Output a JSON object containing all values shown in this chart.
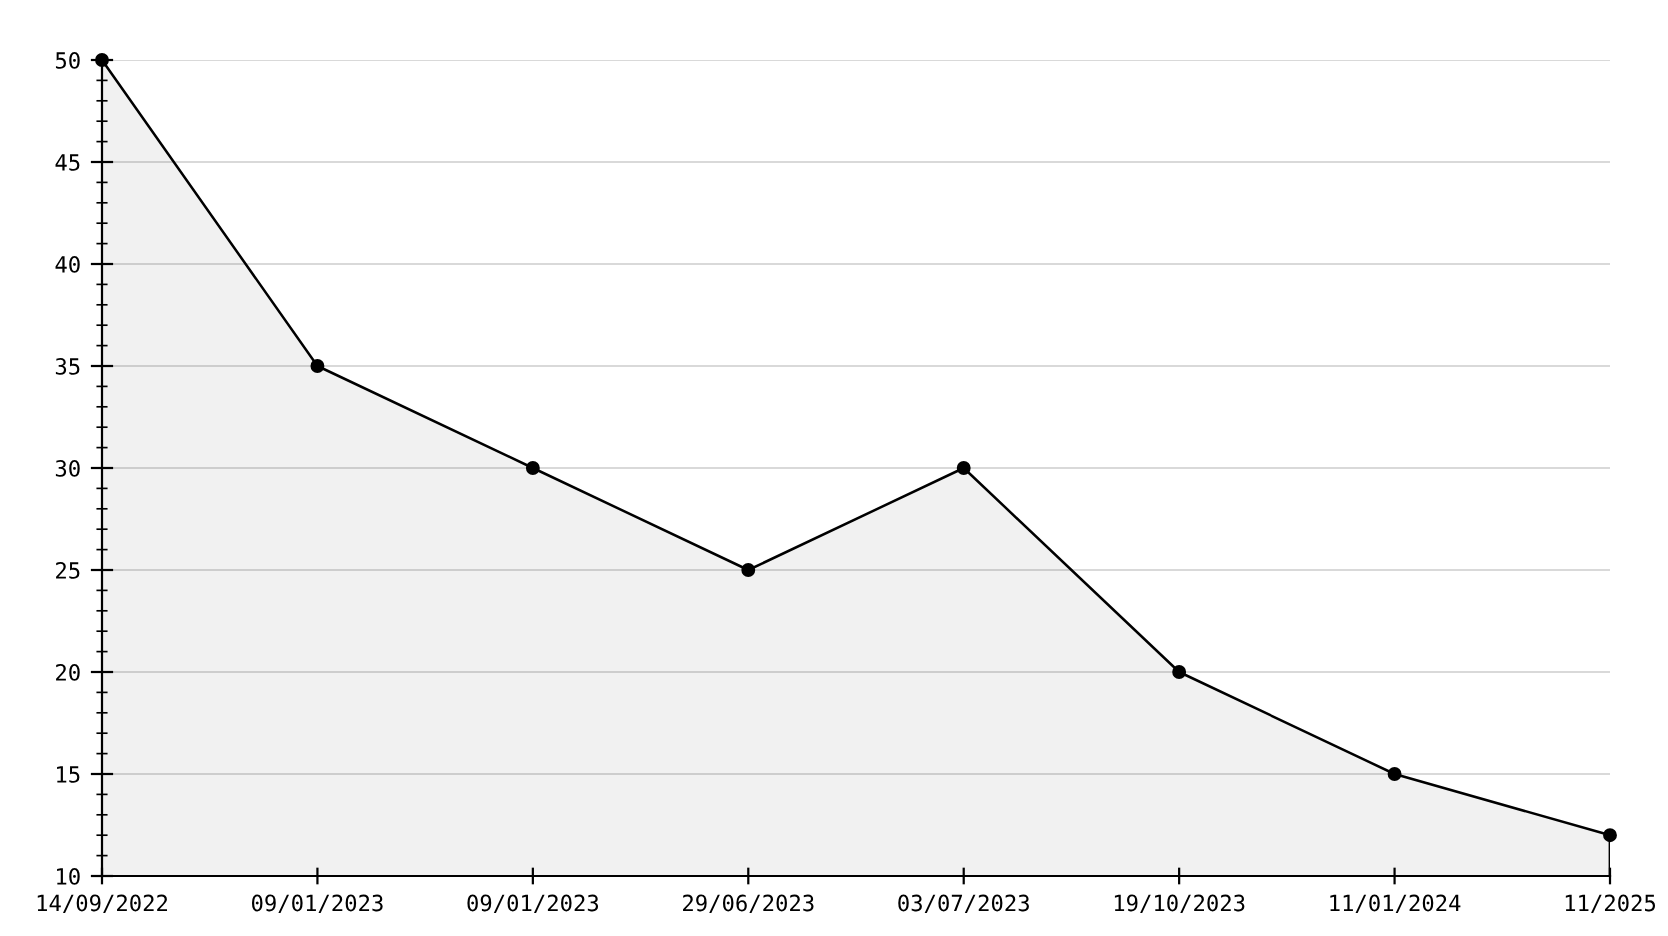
{
  "chart_data": {
    "type": "area",
    "categories": [
      "14/09/2022",
      "09/01/2023",
      "09/01/2023",
      "29/06/2023",
      "03/07/2023",
      "19/10/2023",
      "11/01/2024",
      "11/2025"
    ],
    "series": [
      {
        "color": "#000000",
        "values": [
          50,
          35,
          30,
          25,
          30,
          20,
          15,
          12
        ]
      }
    ],
    "ylim": [
      10,
      50
    ],
    "yticks": [
      10,
      15,
      20,
      25,
      30,
      35,
      40,
      45,
      50
    ],
    "grid": "y",
    "marker": "circle",
    "line_style": "solid",
    "legend": false
  }
}
